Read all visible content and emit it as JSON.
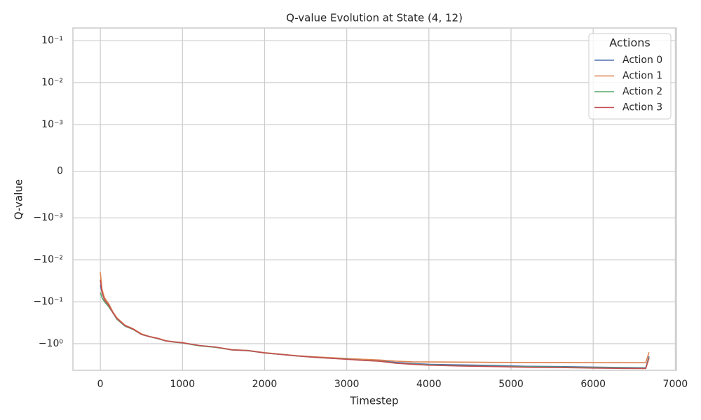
{
  "chart_data": {
    "type": "line",
    "title": "Q-value Evolution at State (4, 12)",
    "x_label": "Timestep",
    "y_label": "Q-value",
    "legend_title": "Actions",
    "legend_position": "upper right",
    "yscale": "symlog",
    "linthresh": 0.001,
    "grid": true,
    "x": [
      0,
      20,
      50,
      100,
      150,
      200,
      300,
      400,
      500,
      600,
      700,
      800,
      900,
      1000,
      1200,
      1400,
      1600,
      1800,
      2000,
      2200,
      2400,
      2600,
      2800,
      3000,
      3200,
      3400,
      3600,
      3800,
      4000,
      4400,
      4800,
      5200,
      5600,
      6000,
      6400,
      6640,
      6680
    ],
    "series": [
      {
        "name": "Action 0",
        "color": "#4c72b0",
        "values": [
          -0.04,
          -0.06,
          -0.09,
          -0.12,
          -0.18,
          -0.25,
          -0.38,
          -0.45,
          -0.6,
          -0.68,
          -0.75,
          -0.86,
          -0.9,
          -0.95,
          -1.1,
          -1.2,
          -1.4,
          -1.45,
          -1.65,
          -1.8,
          -1.95,
          -2.1,
          -2.2,
          -2.3,
          -2.45,
          -2.55,
          -2.8,
          -2.95,
          -3.1,
          -3.2,
          -3.3,
          -3.45,
          -3.5,
          -3.6,
          -3.7,
          -3.75,
          -2.0
        ]
      },
      {
        "name": "Action 1",
        "color": "#dd8452",
        "values": [
          -0.02,
          -0.05,
          -0.08,
          -0.11,
          -0.17,
          -0.24,
          -0.36,
          -0.44,
          -0.58,
          -0.67,
          -0.74,
          -0.85,
          -0.9,
          -0.94,
          -1.1,
          -1.2,
          -1.38,
          -1.45,
          -1.63,
          -1.78,
          -1.93,
          -2.05,
          -2.15,
          -2.25,
          -2.35,
          -2.45,
          -2.6,
          -2.7,
          -2.72,
          -2.75,
          -2.78,
          -2.8,
          -2.8,
          -2.82,
          -2.82,
          -2.82,
          -1.6
        ]
      },
      {
        "name": "Action 2",
        "color": "#55a868",
        "values": [
          -0.06,
          -0.08,
          -0.1,
          -0.13,
          -0.18,
          -0.26,
          -0.38,
          -0.46,
          -0.6,
          -0.68,
          -0.76,
          -0.86,
          -0.92,
          -0.96,
          -1.12,
          -1.22,
          -1.4,
          -1.47,
          -1.66,
          -1.8,
          -1.96,
          -2.1,
          -2.22,
          -2.32,
          -2.5,
          -2.6,
          -2.9,
          -3.05,
          -3.2,
          -3.35,
          -3.45,
          -3.55,
          -3.6,
          -3.7,
          -3.78,
          -3.82,
          -2.1
        ]
      },
      {
        "name": "Action 3",
        "color": "#c44e52",
        "values": [
          -0.03,
          -0.06,
          -0.09,
          -0.12,
          -0.18,
          -0.25,
          -0.37,
          -0.45,
          -0.6,
          -0.68,
          -0.75,
          -0.86,
          -0.91,
          -0.95,
          -1.1,
          -1.2,
          -1.4,
          -1.46,
          -1.66,
          -1.8,
          -1.96,
          -2.1,
          -2.22,
          -2.35,
          -2.5,
          -2.62,
          -2.92,
          -3.1,
          -3.25,
          -3.4,
          -3.5,
          -3.65,
          -3.7,
          -3.8,
          -3.88,
          -3.9,
          -2.2
        ]
      }
    ],
    "xlim": [
      -334,
      7014
    ],
    "xticks": [
      0,
      1000,
      2000,
      3000,
      4000,
      5000,
      6000,
      7000
    ],
    "ylim": [
      -4.3,
      0.2
    ],
    "yticks": [
      {
        "value": 0.1,
        "label": "10⁻¹"
      },
      {
        "value": 0.01,
        "label": "10⁻²"
      },
      {
        "value": 0.001,
        "label": "10⁻³"
      },
      0,
      {
        "value": -0.001,
        "label": "−10⁻³"
      },
      {
        "value": -0.01,
        "label": "−10⁻²"
      },
      {
        "value": -0.1,
        "label": "−10⁻¹"
      },
      {
        "value": -1,
        "label": "−10⁰"
      }
    ]
  }
}
